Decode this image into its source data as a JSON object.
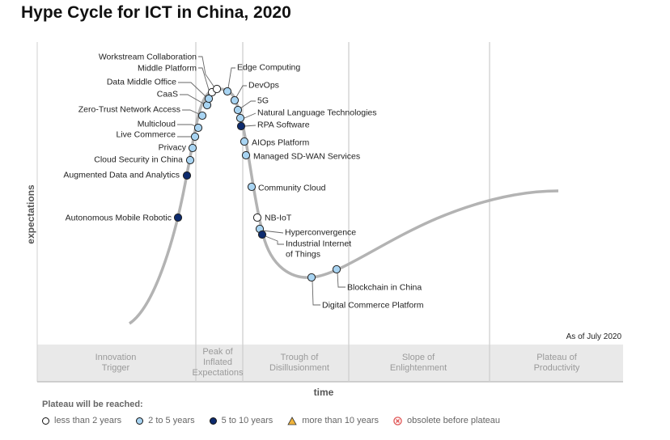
{
  "title": "Hype Cycle for ICT in China, 2020",
  "as_of": "As of July 2020",
  "colors": {
    "less_than_2": "#ffffff",
    "2_to_5": "#a8d4f2",
    "5_to_10": "#0d2b6e",
    "more_than_10": "#f0b43c",
    "obsolete": "#e05555",
    "curve": "#b3b3b3",
    "phase_band": "#e9e9e9"
  },
  "legend": {
    "heading": "Plateau will be reached:",
    "items": [
      {
        "label": "less than 2 years",
        "symbol": "circle",
        "color": "#ffffff"
      },
      {
        "label": "2 to 5 years",
        "symbol": "circle",
        "color": "#a8d4f2"
      },
      {
        "label": "5 to 10 years",
        "symbol": "circle",
        "color": "#0d2b6e"
      },
      {
        "label": "more than 10 years",
        "symbol": "triangle",
        "color": "#f0b43c"
      },
      {
        "label": "obsolete before plateau",
        "symbol": "x-circle",
        "color": "#e05555"
      }
    ]
  },
  "chart_data": {
    "type": "scatter",
    "title": "Hype Cycle for ICT in China, 2020",
    "xlabel": "time",
    "ylabel": "expectations",
    "phases": [
      {
        "lines": [
          "Innovation",
          "Trigger"
        ]
      },
      {
        "lines": [
          "Peak of",
          "Inflated",
          "Expectations"
        ]
      },
      {
        "lines": [
          "Trough of",
          "Disillusionment"
        ]
      },
      {
        "lines": [
          "Slope of",
          "Enlightenment"
        ]
      },
      {
        "lines": [
          "Plateau of",
          "Productivity"
        ]
      }
    ],
    "technologies": [
      {
        "name": "Autonomous Mobile Robotic",
        "category": "5_to_10"
      },
      {
        "name": "Augmented Data and Analytics",
        "category": "5_to_10"
      },
      {
        "name": "Cloud Security in China",
        "category": "2_to_5"
      },
      {
        "name": "Privacy",
        "category": "2_to_5"
      },
      {
        "name": "Live Commerce",
        "category": "2_to_5"
      },
      {
        "name": "Multicloud",
        "category": "2_to_5"
      },
      {
        "name": "Zero-Trust Network Access",
        "category": "2_to_5"
      },
      {
        "name": "CaaS",
        "category": "2_to_5"
      },
      {
        "name": "Data Middle Office",
        "category": "2_to_5"
      },
      {
        "name": "Middle Platform",
        "category": "less_than_2"
      },
      {
        "name": "Workstream Collaboration",
        "category": "less_than_2"
      },
      {
        "name": "Edge Computing",
        "category": "2_to_5"
      },
      {
        "name": "DevOps",
        "category": "2_to_5"
      },
      {
        "name": "5G",
        "category": "2_to_5"
      },
      {
        "name": "Natural Language Technologies",
        "category": "2_to_5"
      },
      {
        "name": "RPA Software",
        "category": "5_to_10"
      },
      {
        "name": "AIOps Platform",
        "category": "2_to_5"
      },
      {
        "name": "Managed SD-WAN Services",
        "category": "2_to_5"
      },
      {
        "name": "Community Cloud",
        "category": "2_to_5"
      },
      {
        "name": "NB-IoT",
        "category": "less_than_2"
      },
      {
        "name": "Hyperconvergence",
        "category": "2_to_5"
      },
      {
        "name": "Industrial Internet of Things",
        "category": "5_to_10"
      },
      {
        "name": "Digital Commerce Platform",
        "category": "2_to_5"
      },
      {
        "name": "Blockchain in China",
        "category": "2_to_5"
      }
    ]
  }
}
